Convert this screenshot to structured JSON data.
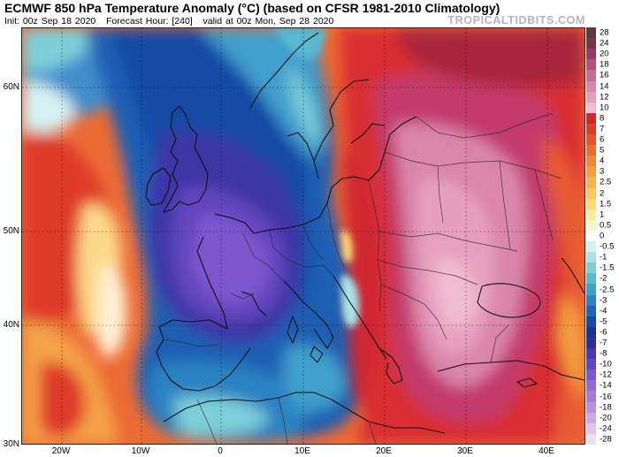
{
  "header": {
    "title": "ECMWF 850 hPa Temperature Anomaly (°C) (based on CFSR 1981-2010 Climatology)",
    "init_label": "Init: 00z Sep 18 2020",
    "forecast_label": "Forecast Hour: [240]",
    "valid_label": "valid at 00z Mon, Sep 28 2020"
  },
  "brand": "TROPICALTIDBITS.COM",
  "map": {
    "lat_labels": [
      "60N",
      "50N",
      "40N",
      "30N"
    ],
    "lon_labels": [
      "20W",
      "10W",
      "0",
      "10E",
      "20E",
      "30E",
      "40E"
    ]
  },
  "legend": {
    "labels": [
      "28",
      "24",
      "20",
      "18",
      "16",
      "14",
      "12",
      "10",
      "8",
      "7",
      "6",
      "5",
      "4",
      "3",
      "2.5",
      "2",
      "1.5",
      "1",
      "0.5",
      "0",
      "-0.5",
      "-1",
      "-1.5",
      "-2",
      "-2.5",
      "-3",
      "-4",
      "-5",
      "-6",
      "-7",
      "-8",
      "-10",
      "-12",
      "-14",
      "-16",
      "-18",
      "-20",
      "-24",
      "-28"
    ],
    "colors": [
      "#5b3a3a",
      "#7a3450",
      "#9b3a66",
      "#b64f7f",
      "#ca6b95",
      "#d986aa",
      "#e6a0bd",
      "#f1bcd1",
      "#cf2630",
      "#dc3b2e",
      "#e6532e",
      "#ec6c32",
      "#f08638",
      "#f49e40",
      "#f7b44c",
      "#f9c95c",
      "#fbdc78",
      "#fcec9c",
      "#fdf6c8",
      "#ffffff",
      "#d4f1f2",
      "#a8e2e6",
      "#7dcfd9",
      "#5ab8d0",
      "#3f9fcb",
      "#2a82c2",
      "#1f64b5",
      "#1848a6",
      "#1a3495",
      "#2d2e9a",
      "#4a3ab0",
      "#6546c1",
      "#7d57ce",
      "#9468d6",
      "#a87ad9",
      "#bb90dd",
      "#ccaae3",
      "#dcc7eb",
      "#ebe0f3"
    ]
  }
}
